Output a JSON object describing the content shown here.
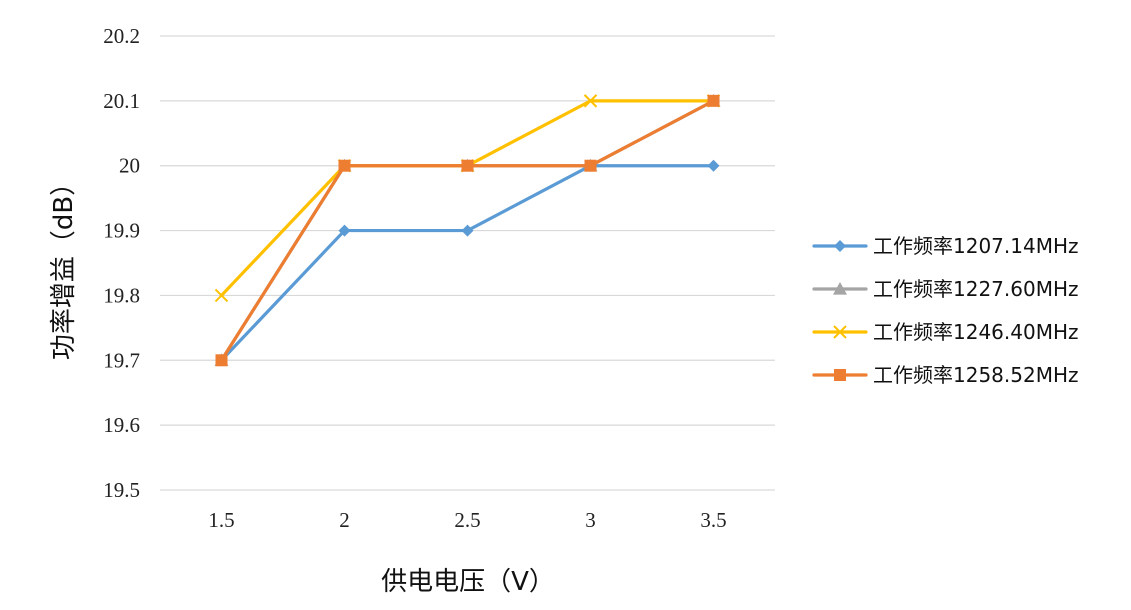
{
  "chart_data": {
    "type": "line",
    "x": [
      1.5,
      2,
      2.5,
      3,
      3.5
    ],
    "x_tick_labels": [
      "1.5",
      "2",
      "2.5",
      "3",
      "3.5"
    ],
    "y_tick_labels": [
      "19.5",
      "19.6",
      "19.7",
      "19.8",
      "19.9",
      "20",
      "20.1",
      "20.2"
    ],
    "ylim": [
      19.5,
      20.2
    ],
    "xlabel": "供电电压（V）",
    "ylabel": "功率增益（dB）",
    "grid": true,
    "legend_position": "right",
    "series": [
      {
        "name": "工作频率1207.14MHz",
        "values": [
          19.7,
          19.9,
          19.9,
          20.0,
          20.0
        ],
        "color": "#5B9BD5",
        "marker": "diamond"
      },
      {
        "name": "工作频率1227.60MHz",
        "values": [
          19.7,
          20.0,
          20.0,
          20.0,
          20.1
        ],
        "color": "#A5A5A5",
        "marker": "triangle"
      },
      {
        "name": "工作频率1246.40MHz",
        "values": [
          19.8,
          20.0,
          20.0,
          20.1,
          20.1
        ],
        "color": "#FFC000",
        "marker": "cross"
      },
      {
        "name": "工作频率1258.52MHz",
        "values": [
          19.7,
          20.0,
          20.0,
          20.0,
          20.1
        ],
        "color": "#ED7D31",
        "marker": "square"
      }
    ]
  }
}
